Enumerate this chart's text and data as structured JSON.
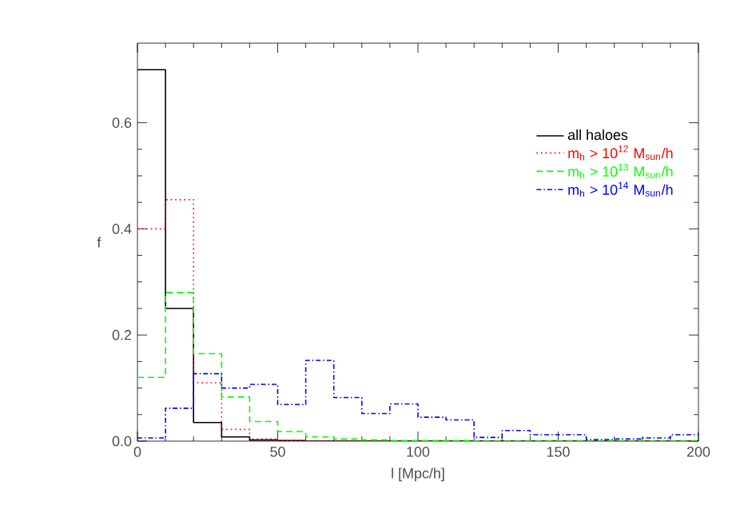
{
  "chart_data": {
    "type": "histogram",
    "xlabel": "l [Mpc/h]",
    "ylabel": "f",
    "bins": [
      0,
      10,
      20,
      30,
      40,
      50,
      60,
      70,
      80,
      90,
      100,
      110,
      120,
      130,
      140,
      150,
      160,
      170,
      180,
      190,
      200
    ],
    "xlim": [
      0,
      200
    ],
    "ylim": [
      0,
      0.75
    ],
    "xticks": [
      0,
      50,
      100,
      150,
      200
    ],
    "yticks": [
      {
        "value": 0,
        "label": "0.0"
      },
      {
        "value": 0.2,
        "label": "0.2"
      },
      {
        "value": 0.4,
        "label": "0.4"
      },
      {
        "value": 0.6,
        "label": "0.6"
      }
    ],
    "legend": "top right",
    "grid": false,
    "series": [
      {
        "name": "all haloes",
        "color": "#000000",
        "line_style": "solid",
        "values": [
          0.7,
          0.25,
          0.035,
          0.008,
          0.002,
          0.001,
          0,
          0,
          0,
          0,
          0,
          0,
          0,
          0,
          0,
          0,
          0,
          0,
          0,
          0
        ]
      },
      {
        "name": "m$_{h}$ > 10$^{12}$ M$_{sun}$/h",
        "color": "#ff0000",
        "line_style": "dotted",
        "values": [
          0.4,
          0.455,
          0.11,
          0.022,
          0.004,
          0.001,
          0,
          0,
          0,
          0,
          0,
          0,
          0,
          0,
          0,
          0,
          0,
          0,
          0,
          0
        ]
      },
      {
        "name": "m$_{h}$ > 10$^{13}$ M$_{sun}$/h",
        "color": "#00ff00",
        "line_style": "dashed",
        "values": [
          0.12,
          0.28,
          0.165,
          0.083,
          0.037,
          0.018,
          0.008,
          0.004,
          0.002,
          0.001,
          0.001,
          0.001,
          0,
          0,
          0,
          0,
          0,
          0,
          0,
          0
        ]
      },
      {
        "name": "m$_{h}$ > 10$^{14}$ M$_{sun}$/h",
        "color": "#0000ff",
        "line_style": "dashdot",
        "values": [
          0.006,
          0.062,
          0.127,
          0.1,
          0.107,
          0.069,
          0.152,
          0.082,
          0.052,
          0.07,
          0.045,
          0.04,
          0.007,
          0.02,
          0.012,
          0.012,
          0.003,
          0.004,
          0.006,
          0.012
        ]
      }
    ]
  }
}
